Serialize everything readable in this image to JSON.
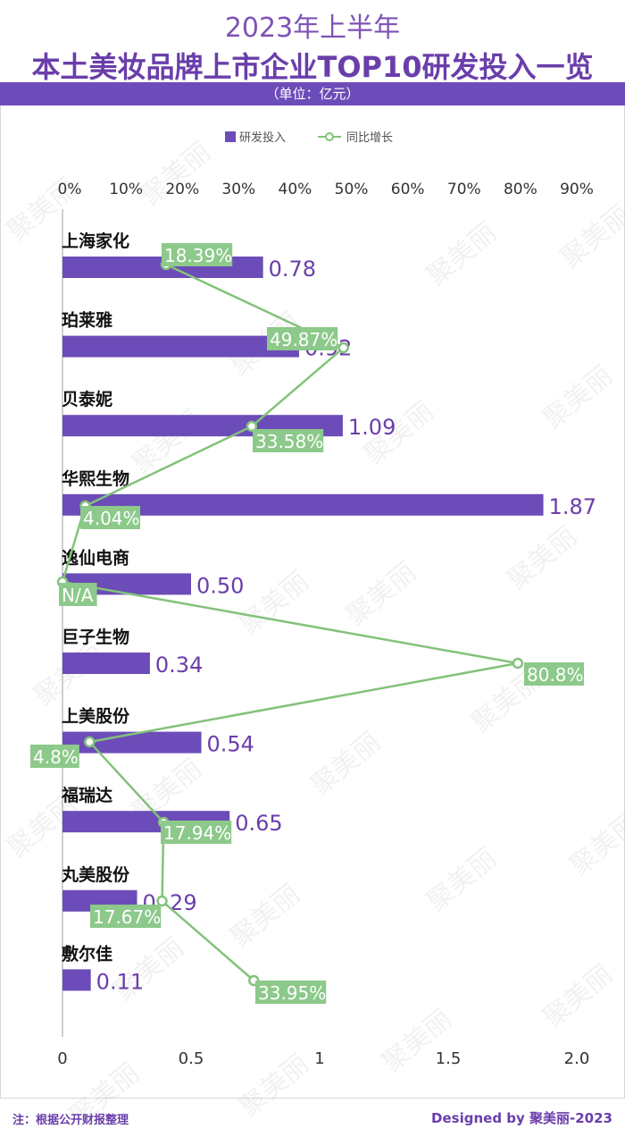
{
  "title": {
    "line1": "2023年上半年",
    "line2": "本土美妆品牌上市企业TOP10研发投入一览",
    "unit": "（单位：亿元）"
  },
  "footer": {
    "note": "注：根据公开财报整理",
    "credit": "Designed by 聚美丽-2023"
  },
  "watermark_text": "聚美丽",
  "colors": {
    "bar": "#6c4cb8",
    "line": "#83c27a",
    "label_bg": "#8cc98a",
    "value_text": "#6a3eaa",
    "axis": "#bdbdbd"
  },
  "chart_data": {
    "type": "bar",
    "orientation": "horizontal",
    "legend": {
      "position": "top-center",
      "items": [
        "研发投入",
        "同比增长"
      ]
    },
    "categories": [
      "上海家化",
      "珀莱雅",
      "贝泰妮",
      "华熙生物",
      "逸仙电商",
      "巨子生物",
      "上美股份",
      "福瑞达",
      "丸美股份",
      "敷尔佳"
    ],
    "series": [
      {
        "name": "研发投入",
        "type": "bar",
        "axis": "bottom",
        "values": [
          0.78,
          0.92,
          1.09,
          1.87,
          0.5,
          0.34,
          0.54,
          0.65,
          0.29,
          0.11
        ],
        "labels": [
          "0.78",
          "0.92",
          "1.09",
          "1.87",
          "0.50",
          "0.34",
          "0.54",
          "0.65",
          "0. 29",
          "0.11"
        ]
      },
      {
        "name": "同比增长",
        "type": "line",
        "axis": "top",
        "values": [
          18.39,
          49.87,
          33.58,
          4.04,
          0,
          80.8,
          4.8,
          17.94,
          17.67,
          33.95
        ],
        "labels": [
          "18.39%",
          "49.87%",
          "33.58%",
          "4.04%",
          "N/A",
          "80.8%",
          "4.8%",
          "17.94%",
          "17.67%",
          "33.95%"
        ]
      }
    ],
    "bottom_axis": {
      "ticks": [
        "0",
        "0.5",
        "1",
        "1.5",
        "2.0"
      ],
      "range": [
        0,
        2.0
      ]
    },
    "top_axis": {
      "ticks": [
        "0%",
        "10%",
        "20%",
        "30%",
        "40%",
        "50%",
        "60%",
        "70%",
        "80%",
        "90%"
      ],
      "range": [
        0,
        90
      ]
    }
  }
}
